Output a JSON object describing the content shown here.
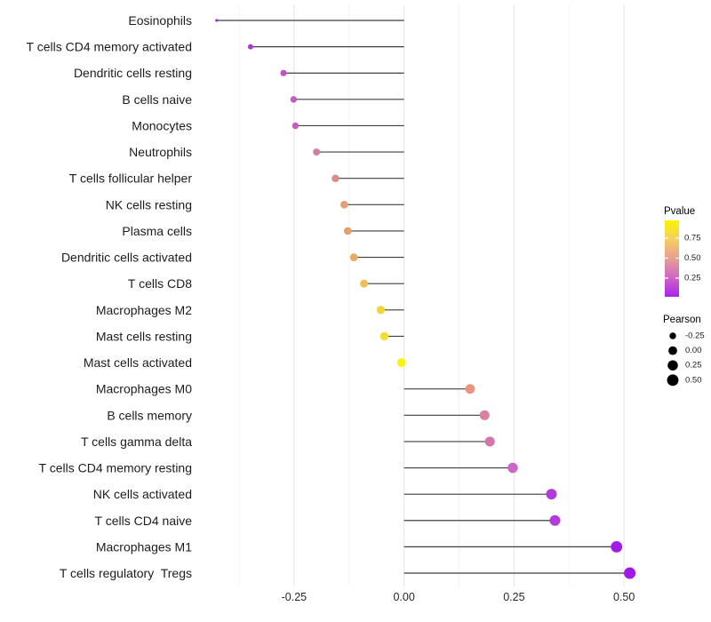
{
  "chart_data": {
    "type": "lollipop",
    "orientation": "horizontal",
    "title": "",
    "xlabel": "",
    "ylabel": "",
    "xlim": [
      -0.47,
      0.53
    ],
    "x_ticks": [
      -0.25,
      0.0,
      0.25,
      0.5
    ],
    "x_tick_labels": [
      "-0.25",
      "0.00",
      "0.25",
      "0.50"
    ],
    "x_minor_gridlines": [
      -0.375,
      -0.125,
      0.125,
      0.375
    ],
    "grid": "vertical-only",
    "legend_position": "right",
    "encoding": {
      "dot_size": "Pearson",
      "dot_color": "Pvalue",
      "stem": "from 0 to Pearson"
    },
    "points": [
      {
        "label": "Eosinophils",
        "pearson": -0.426,
        "pvalue": 0.05,
        "color": "#9a33d6"
      },
      {
        "label": "T cells CD4 memory activated",
        "pearson": -0.349,
        "pvalue": 0.08,
        "color": "#a93cd6"
      },
      {
        "label": "Dendritic cells resting",
        "pearson": -0.274,
        "pvalue": 0.18,
        "color": "#c250c8"
      },
      {
        "label": "B cells naive",
        "pearson": -0.251,
        "pvalue": 0.22,
        "color": "#c65bc4"
      },
      {
        "label": "Monocytes",
        "pearson": -0.247,
        "pvalue": 0.23,
        "color": "#c75fc2"
      },
      {
        "label": "Neutrophils",
        "pearson": -0.199,
        "pvalue": 0.36,
        "color": "#d37da1"
      },
      {
        "label": "T cells follicular helper",
        "pearson": -0.156,
        "pvalue": 0.46,
        "color": "#dd8b85"
      },
      {
        "label": "NK cells resting",
        "pearson": -0.136,
        "pvalue": 0.54,
        "color": "#e59d74"
      },
      {
        "label": "Plasma cells",
        "pearson": -0.128,
        "pvalue": 0.57,
        "color": "#e6a06b"
      },
      {
        "label": "Dendritic cells activated",
        "pearson": -0.114,
        "pvalue": 0.63,
        "color": "#eaab60"
      },
      {
        "label": "T cells CD8",
        "pearson": -0.091,
        "pvalue": 0.7,
        "color": "#edc155"
      },
      {
        "label": "Macrophages M2",
        "pearson": -0.053,
        "pvalue": 0.8,
        "color": "#f2d43c"
      },
      {
        "label": "Mast cells resting",
        "pearson": -0.045,
        "pvalue": 0.84,
        "color": "#f4dd30"
      },
      {
        "label": "Mast cells activated",
        "pearson": -0.006,
        "pvalue": 0.98,
        "color": "#fdf403"
      },
      {
        "label": "Macrophages M0",
        "pearson": 0.15,
        "pvalue": 0.45,
        "color": "#e8947e"
      },
      {
        "label": "B cells memory",
        "pearson": 0.183,
        "pvalue": 0.4,
        "color": "#dc809f"
      },
      {
        "label": "T cells gamma delta",
        "pearson": 0.195,
        "pvalue": 0.34,
        "color": "#d376ab"
      },
      {
        "label": "T cells CD4 memory resting",
        "pearson": 0.247,
        "pvalue": 0.26,
        "color": "#c968c6"
      },
      {
        "label": "NK cells activated",
        "pearson": 0.335,
        "pvalue": 0.08,
        "color": "#b23cda"
      },
      {
        "label": "T cells CD4 naive",
        "pearson": 0.343,
        "pvalue": 0.08,
        "color": "#b13cda"
      },
      {
        "label": "Macrophages M1",
        "pearson": 0.483,
        "pvalue": 0.02,
        "color": "#a21ae4"
      },
      {
        "label": "T cells regulatory  Tregs",
        "pearson": 0.513,
        "pvalue": 0.02,
        "color": "#a318e4"
      }
    ],
    "color_legend": {
      "title": "Pvalue",
      "tick_labels": [
        "0.75",
        "0.50",
        "0.25"
      ],
      "gradient_top_to_bottom": [
        "#fdf200",
        "#f5ce62",
        "#e79e92",
        "#cf65c4",
        "#a722ec"
      ]
    },
    "size_legend": {
      "title": "Pearson",
      "tick_labels": [
        "-0.25",
        "0.00",
        "0.25",
        "0.50"
      ],
      "values": [
        -0.25,
        0.0,
        0.25,
        0.5
      ],
      "dot_color": "#000000"
    },
    "colors": {
      "background": "#ffffff",
      "stem": "#3f3f3f",
      "grid_major": "#e4e4e4",
      "grid_minor": "#f3f3f3",
      "axis_text": "#262626",
      "category_text": "#1c1c1c",
      "legend_title_text": "#000000"
    }
  }
}
